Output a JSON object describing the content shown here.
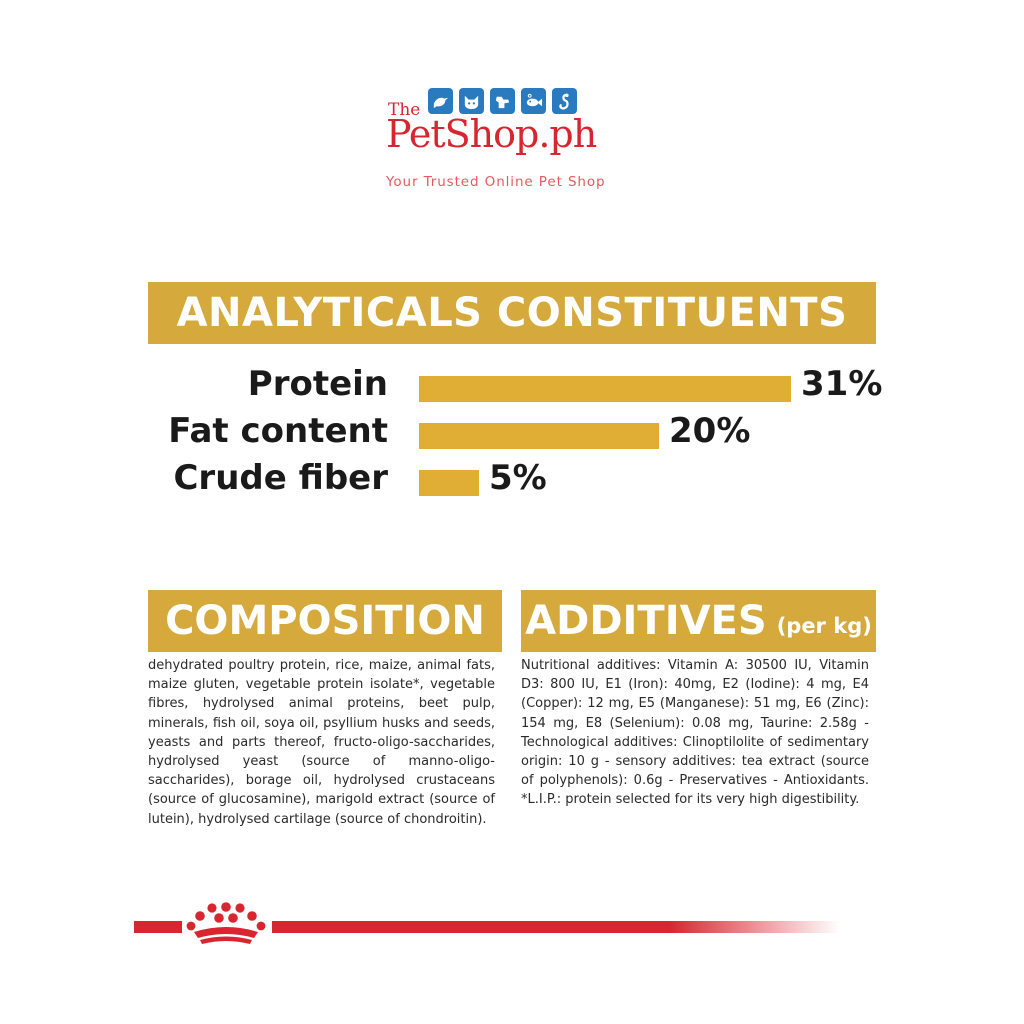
{
  "logo": {
    "the": "The",
    "brand": "PetShop.ph",
    "tagline": "Your Trusted Online Pet Shop",
    "icons": [
      "bird-icon",
      "cat-icon",
      "dog-icon",
      "fish-icon",
      "snake-icon"
    ],
    "brand_color": "#d7262f",
    "icon_color": "#2a7ac0"
  },
  "analytics": {
    "heading": "ANALYTICALS CONSTITUENTS",
    "accent_color": "#d6a93c",
    "rows": [
      {
        "label": "Protein",
        "value": "31%",
        "percent": 31
      },
      {
        "label": "Fat content",
        "value": "20%",
        "percent": 20
      },
      {
        "label": "Crude fiber",
        "value": "5%",
        "percent": 5
      }
    ]
  },
  "composition": {
    "heading": "COMPOSITION",
    "text": "dehydrated poultry protein, rice, maize, animal fats, maize gluten, vegetable protein isolate*, vegetable fibres, hydrolysed animal proteins, beet pulp, minerals, fish oil, soya oil, psyllium husks and seeds, yeasts and parts thereof, fructo-oligo-saccharides, hydrolysed yeast (source of manno-oligo-saccharides), borage oil, hydrolysed crustaceans (source of glucosamine), marigold extract (source of lutein), hydrolysed cartilage (source of chondroitin)."
  },
  "additives": {
    "heading": "ADDITIVES",
    "unit": "(per kg)",
    "text": "Nutritional additives: Vitamin A: 30500 IU, Vitamin D3: 800 IU, E1 (Iron): 40mg, E2 (Iodine): 4 mg, E4 (Copper): 12 mg, E5 (Manganese): 51 mg, E6 (Zinc): 154 mg, E8 (Selenium): 0.08 mg, Taurine: 2.58g - Technological additives: Clinoptilolite of sedimentary origin: 10 g - sensory additives: tea extract (source of polyphenols): 0.6g - Preservatives - Antioxidants. *L.I.P.: protein selected for its very high digestibility."
  },
  "footer": {
    "logo_icon": "royal-canin-crown-icon",
    "line_color": "#d7262f"
  }
}
